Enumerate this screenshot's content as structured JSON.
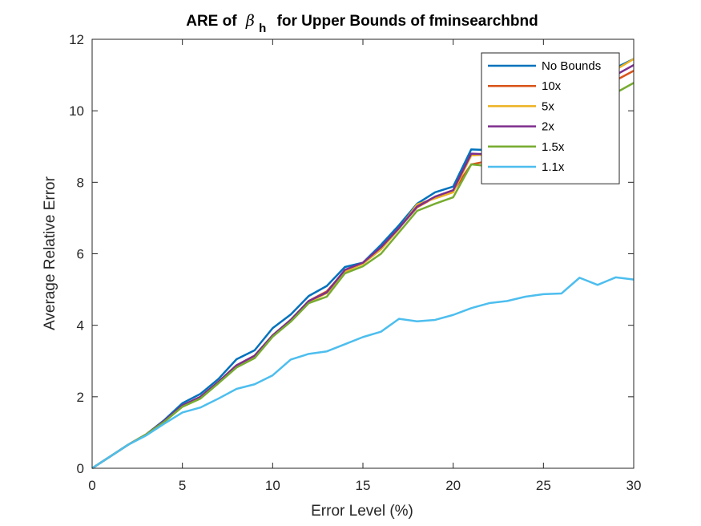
{
  "chart_data": {
    "type": "line",
    "title": {
      "prefix": "ARE of",
      "symbol": "β",
      "subscript": "h",
      "suffix": "for Upper Bounds of fminsearchbnd"
    },
    "xlabel": "Error Level (%)",
    "ylabel": "Average Relative Error",
    "xlim": [
      0,
      30
    ],
    "ylim": [
      0,
      12
    ],
    "xticks": [
      0,
      5,
      10,
      15,
      20,
      25,
      30
    ],
    "yticks": [
      0,
      2,
      4,
      6,
      8,
      10,
      12
    ],
    "grid": false,
    "legend_position": "top-right",
    "x": [
      0,
      1,
      2,
      3,
      4,
      5,
      6,
      7,
      8,
      9,
      10,
      11,
      12,
      13,
      14,
      15,
      16,
      17,
      18,
      19,
      20,
      21,
      22,
      23,
      24,
      25,
      26,
      27,
      28,
      29,
      30
    ],
    "series": [
      {
        "name": "No Bounds",
        "color": "#0072BD",
        "values": [
          0,
          0.33,
          0.66,
          0.95,
          1.35,
          1.82,
          2.08,
          2.5,
          3.05,
          3.3,
          3.92,
          4.3,
          4.82,
          5.1,
          5.63,
          5.75,
          6.25,
          6.8,
          7.4,
          7.72,
          7.88,
          8.92,
          8.9,
          9.2,
          9.55,
          9.88,
          10.2,
          10.6,
          10.9,
          11.2,
          11.45
        ]
      },
      {
        "name": "10x",
        "color": "#D95319",
        "values": [
          0,
          0.33,
          0.66,
          0.95,
          1.32,
          1.75,
          2.0,
          2.42,
          2.88,
          3.15,
          3.72,
          4.15,
          4.68,
          4.95,
          5.52,
          5.75,
          6.15,
          6.72,
          7.3,
          7.58,
          7.75,
          8.5,
          8.6,
          8.9,
          9.25,
          9.6,
          9.9,
          10.25,
          10.55,
          10.85,
          11.12
        ]
      },
      {
        "name": "5x",
        "color": "#EDB120",
        "values": [
          0,
          0.33,
          0.66,
          0.95,
          1.32,
          1.74,
          1.98,
          2.4,
          2.85,
          3.12,
          3.7,
          4.12,
          4.65,
          4.9,
          5.5,
          5.72,
          6.12,
          6.7,
          7.38,
          7.55,
          7.72,
          8.75,
          8.78,
          9.05,
          9.4,
          9.75,
          10.05,
          10.45,
          10.8,
          11.15,
          11.45
        ]
      },
      {
        "name": "2x",
        "color": "#7E2F8E",
        "values": [
          0,
          0.33,
          0.66,
          0.95,
          1.33,
          1.76,
          2.0,
          2.42,
          2.88,
          3.15,
          3.72,
          4.15,
          4.68,
          4.92,
          5.55,
          5.75,
          6.18,
          6.72,
          7.32,
          7.6,
          7.78,
          8.8,
          8.78,
          9.0,
          9.35,
          9.68,
          9.98,
          10.35,
          10.7,
          11.0,
          11.28
        ]
      },
      {
        "name": "1.5x",
        "color": "#77AC30",
        "values": [
          0,
          0.33,
          0.66,
          0.95,
          1.3,
          1.72,
          1.95,
          2.38,
          2.82,
          3.08,
          3.68,
          4.1,
          4.62,
          4.8,
          5.45,
          5.65,
          6.0,
          6.6,
          7.2,
          7.4,
          7.58,
          8.5,
          8.45,
          8.7,
          9.05,
          9.35,
          9.65,
          10.0,
          10.3,
          10.5,
          10.78
        ]
      },
      {
        "name": "1.1x",
        "color": "#4DBEEE",
        "values": [
          0,
          0.33,
          0.66,
          0.92,
          1.25,
          1.56,
          1.7,
          1.95,
          2.22,
          2.35,
          2.6,
          3.04,
          3.2,
          3.27,
          3.47,
          3.67,
          3.82,
          4.18,
          4.11,
          4.15,
          4.29,
          4.48,
          4.62,
          4.68,
          4.8,
          4.87,
          4.89,
          5.33,
          5.13,
          5.34,
          5.28
        ]
      }
    ]
  }
}
